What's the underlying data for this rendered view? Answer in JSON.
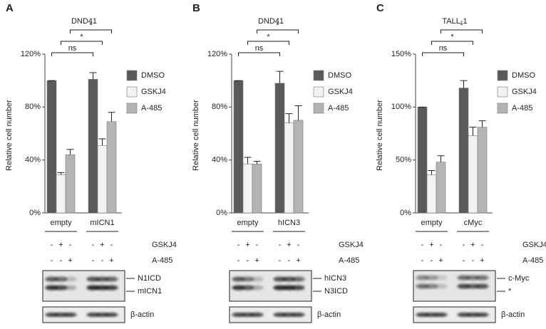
{
  "chart_data": [
    {
      "type": "bar",
      "title": "DND41",
      "y_label": "Relative cell number",
      "categories": [
        "empty",
        "mICN1"
      ],
      "series": [
        {
          "name": "DMSO",
          "color": "#5a5a5a",
          "values": [
            100,
            101
          ],
          "errors": [
            0,
            5
          ]
        },
        {
          "name": "GSKJ4",
          "color": "#f2f2f2",
          "values": [
            29,
            51
          ],
          "errors": [
            1.5,
            5
          ]
        },
        {
          "name": "A-485",
          "color": "#b4b4b4",
          "values": [
            44,
            69
          ],
          "errors": [
            4,
            7
          ]
        }
      ],
      "ylim": [
        0,
        120
      ],
      "yticks": [
        {
          "value": 0,
          "label": "0%"
        },
        {
          "value": 40,
          "label": "40%"
        },
        {
          "value": 80,
          "label": "80%"
        },
        {
          "value": 120,
          "label": "120%"
        }
      ],
      "annotations": [
        "ns",
        "*",
        "*"
      ]
    },
    {
      "type": "bar",
      "title": "DND41",
      "y_label": "Relative cell number",
      "categories": [
        "empty",
        "hICN3"
      ],
      "series": [
        {
          "name": "DMSO",
          "color": "#5a5a5a",
          "values": [
            100,
            98
          ],
          "errors": [
            0,
            9
          ]
        },
        {
          "name": "GSKJ4",
          "color": "#f2f2f2",
          "values": [
            37,
            68
          ],
          "errors": [
            5,
            7
          ]
        },
        {
          "name": "A-485",
          "color": "#b4b4b4",
          "values": [
            37,
            70
          ],
          "errors": [
            2,
            11
          ]
        }
      ],
      "ylim": [
        0,
        120
      ],
      "yticks": [
        {
          "value": 0,
          "label": "0%"
        },
        {
          "value": 40,
          "label": "40%"
        },
        {
          "value": 80,
          "label": "80%"
        },
        {
          "value": 120,
          "label": "120%"
        }
      ],
      "annotations": [
        "ns",
        "*",
        "*"
      ]
    },
    {
      "type": "bar",
      "title": "TALL-1",
      "y_label": "Relative cell number",
      "categories": [
        "empty",
        "cMyc"
      ],
      "series": [
        {
          "name": "DMSO",
          "color": "#5a5a5a",
          "values": [
            100,
            118
          ],
          "errors": [
            0,
            7
          ]
        },
        {
          "name": "GSKJ4",
          "color": "#f2f2f2",
          "values": [
            36,
            73
          ],
          "errors": [
            4,
            8
          ]
        },
        {
          "name": "A-485",
          "color": "#b4b4b4",
          "values": [
            48,
            81
          ],
          "errors": [
            6,
            6
          ]
        }
      ],
      "ylim": [
        0,
        150
      ],
      "yticks": [
        {
          "value": 0,
          "label": "0%"
        },
        {
          "value": 50,
          "label": "50%"
        },
        {
          "value": 100,
          "label": "100%"
        },
        {
          "value": 150,
          "label": "150%"
        }
      ],
      "annotations": [
        "ns",
        "*",
        "*"
      ]
    }
  ],
  "panels": [
    {
      "letter": "A",
      "treatments": [
        {
          "name": "GSKJ4",
          "signs": [
            "-",
            "+",
            "-",
            "-",
            "+",
            "-"
          ]
        },
        {
          "name": "A-485",
          "signs": [
            "-",
            "-",
            "+",
            "-",
            "-",
            "+"
          ]
        }
      ],
      "blot_labels": [
        "N1ICD",
        "mICN1"
      ],
      "loading_label": "β-actin"
    },
    {
      "letter": "B",
      "treatments": [
        {
          "name": "GSKJ4",
          "signs": [
            "-",
            "+",
            "-",
            "-",
            "+",
            "-"
          ]
        },
        {
          "name": "A-485",
          "signs": [
            "-",
            "-",
            "+",
            "-",
            "-",
            "+"
          ]
        }
      ],
      "blot_labels": [
        "hICN3",
        "N3ICD"
      ],
      "loading_label": "β-actin"
    },
    {
      "letter": "C",
      "treatments": [
        {
          "name": "GSKJ4",
          "signs": [
            "-",
            "+",
            "-",
            "-",
            "+",
            "-"
          ]
        },
        {
          "name": "A-485",
          "signs": [
            "-",
            "-",
            "+",
            "-",
            "-",
            "+"
          ]
        }
      ],
      "blot_labels": [
        "c-Myc",
        "*"
      ],
      "loading_label": "β-actin"
    }
  ]
}
